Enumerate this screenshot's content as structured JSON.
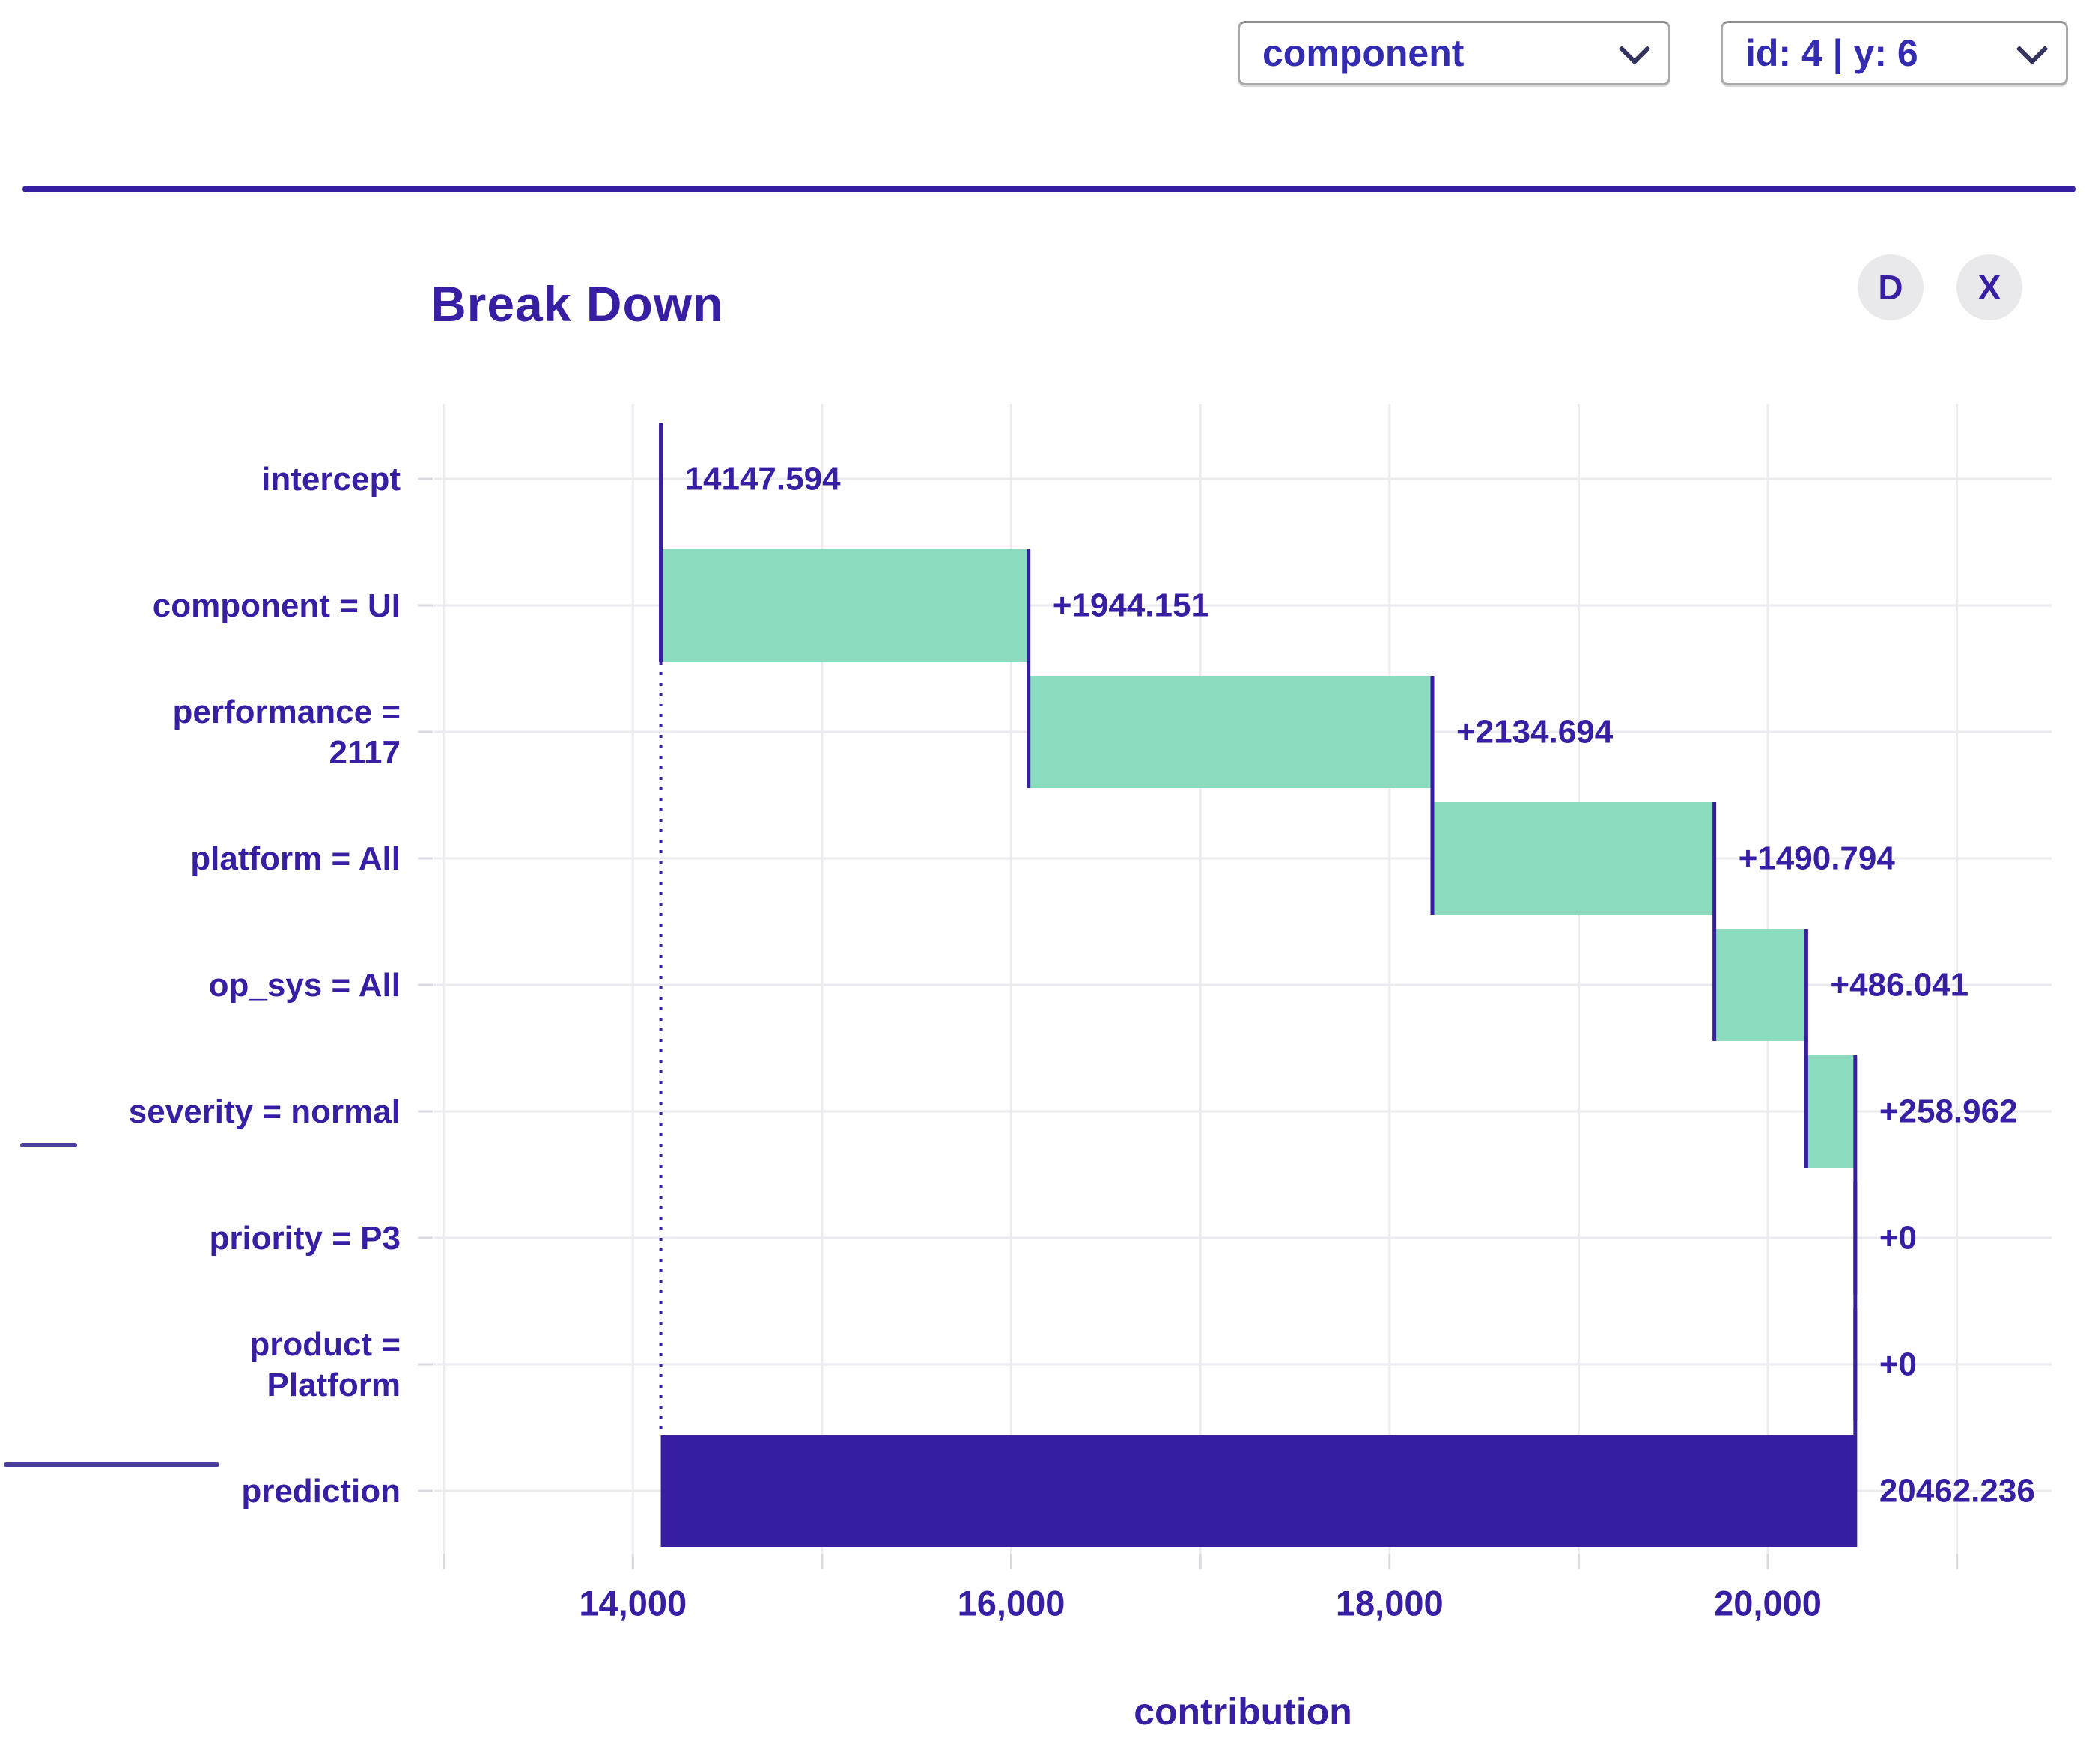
{
  "header": {
    "variable_dropdown": {
      "value": "component"
    },
    "observation_dropdown": {
      "value": "id: 4 | y: 6"
    }
  },
  "panel": {
    "title": "Break Down",
    "download_label": "D",
    "close_label": "X"
  },
  "colors": {
    "accent_text": "#371ea3",
    "positive_bar": "#8bdcbe",
    "prediction_bar": "#371ea3",
    "connector": "#371ea3",
    "grid": "#ebebf0",
    "tick_stub": "#d9d9e0",
    "stray_line": "#4b3f9e",
    "button_bg": "#e9e9ec",
    "select_border": "#a9a9a9",
    "divider": "#371ea3"
  },
  "chart_data": {
    "type": "bar",
    "subtype": "waterfall-breakdown",
    "title": "Break Down",
    "xlabel": "contribution",
    "grid": true,
    "legend_position": "none",
    "xlim": [
      12950,
      21500
    ],
    "x_gridline_values": [
      13000,
      14000,
      15000,
      16000,
      17000,
      18000,
      19000,
      20000,
      21000
    ],
    "x_tick_values": [
      14000,
      16000,
      18000,
      20000
    ],
    "x_tick_labels": [
      "14,000",
      "16,000",
      "18,000",
      "20,000"
    ],
    "baseline_value": 14147.594,
    "prediction_value": 20462.236,
    "categories": [
      "intercept",
      "component = UI",
      "performance = 2117",
      "platform = All",
      "op_sys = All",
      "severity = normal",
      "priority = P3",
      "product = Platform",
      "prediction"
    ],
    "steps": [
      {
        "label_lines": [
          "intercept"
        ],
        "start": 14147.594,
        "end": 14147.594,
        "contribution": 14147.594,
        "value_label": "14147.594",
        "kind": "intercept"
      },
      {
        "label_lines": [
          "component = UI"
        ],
        "start": 14147.594,
        "end": 16091.745,
        "contribution": 1944.151,
        "value_label": "+1944.151",
        "kind": "positive"
      },
      {
        "label_lines": [
          "performance =",
          "2117"
        ],
        "start": 16091.745,
        "end": 18226.439,
        "contribution": 2134.694,
        "value_label": "+2134.694",
        "kind": "positive"
      },
      {
        "label_lines": [
          "platform = All"
        ],
        "start": 18226.439,
        "end": 19717.233,
        "contribution": 1490.794,
        "value_label": "+1490.794",
        "kind": "positive"
      },
      {
        "label_lines": [
          "op_sys = All"
        ],
        "start": 19717.233,
        "end": 20203.274,
        "contribution": 486.041,
        "value_label": "+486.041",
        "kind": "positive"
      },
      {
        "label_lines": [
          "severity = normal"
        ],
        "start": 20203.274,
        "end": 20462.236,
        "contribution": 258.962,
        "value_label": "+258.962",
        "kind": "positive"
      },
      {
        "label_lines": [
          "priority = P3"
        ],
        "start": 20462.236,
        "end": 20462.236,
        "contribution": 0,
        "value_label": "+0",
        "kind": "zero"
      },
      {
        "label_lines": [
          "product =",
          "Platform"
        ],
        "start": 20462.236,
        "end": 20462.236,
        "contribution": 0,
        "value_label": "+0",
        "kind": "zero"
      },
      {
        "label_lines": [
          "prediction"
        ],
        "start": 14147.594,
        "end": 20462.236,
        "contribution": 20462.236,
        "value_label": "20462.236",
        "kind": "prediction"
      }
    ]
  }
}
